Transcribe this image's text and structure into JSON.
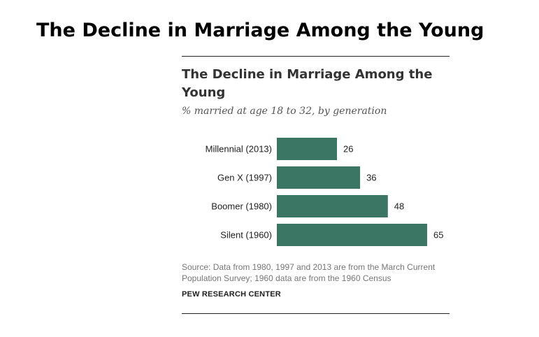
{
  "page": {
    "title": "The Decline in Marriage Among the Young"
  },
  "chart_data": {
    "type": "bar",
    "orientation": "horizontal",
    "title": "The Decline in Marriage Among the Young",
    "subtitle": "% married at age 18 to 32, by generation",
    "categories": [
      "Millennial (2013)",
      "Gen X (1997)",
      "Boomer (1980)",
      "Silent (1960)"
    ],
    "values": [
      26,
      36,
      48,
      65
    ],
    "xlim": [
      0,
      65
    ],
    "grid": false,
    "legend": "none",
    "bar_color": "#3b7563",
    "source": "Source: Data from 1980, 1997 and 2013 are from the March Current Population Survey; 1960 data are from the 1960 Census",
    "brand": "PEW RESEARCH CENTER"
  }
}
